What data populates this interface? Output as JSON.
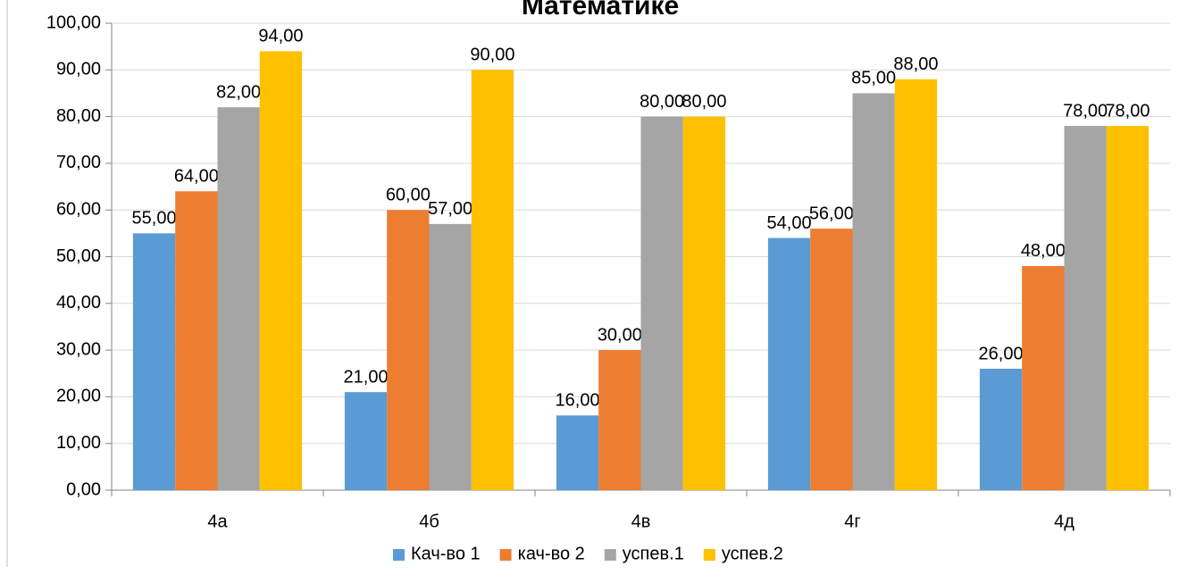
{
  "chart_data": {
    "type": "bar",
    "title": "Математике",
    "categories": [
      "4а",
      "4б",
      "4в",
      "4г",
      "4д"
    ],
    "series": [
      {
        "name": "Кач-во 1",
        "color": "#5b9bd5",
        "values": [
          55,
          21,
          16,
          54,
          26
        ],
        "value_labels": [
          "55,00",
          "21,00",
          "16,00",
          "54,00",
          "26,00"
        ]
      },
      {
        "name": "кач-во 2",
        "color": "#ed7d31",
        "values": [
          64,
          60,
          30,
          56,
          48
        ],
        "value_labels": [
          "64,00",
          "60,00",
          "30,00",
          "56,00",
          "48,00"
        ]
      },
      {
        "name": "успев.1",
        "color": "#a5a5a5",
        "values": [
          82,
          57,
          80,
          85,
          78
        ],
        "value_labels": [
          "82,00",
          "57,00",
          "80,00",
          "85,00",
          "78,00"
        ]
      },
      {
        "name": "успев.2",
        "color": "#ffc000",
        "values": [
          94,
          90,
          80,
          88,
          78
        ],
        "value_labels": [
          "94,00",
          "90,00",
          "80,00",
          "88,00",
          "78,00"
        ]
      }
    ],
    "ylim": [
      0,
      100
    ],
    "yticks": [
      {
        "value": 0,
        "label": "0,00"
      },
      {
        "value": 10,
        "label": "10,00"
      },
      {
        "value": 20,
        "label": "20,00"
      },
      {
        "value": 30,
        "label": "30,00"
      },
      {
        "value": 40,
        "label": "40,00"
      },
      {
        "value": 50,
        "label": "50,00"
      },
      {
        "value": 60,
        "label": "60,00"
      },
      {
        "value": 70,
        "label": "70,00"
      },
      {
        "value": 80,
        "label": "80,00"
      },
      {
        "value": 90,
        "label": "90,00"
      },
      {
        "value": 100,
        "label": "100,00"
      }
    ],
    "grid": true,
    "legend": "bottom"
  }
}
